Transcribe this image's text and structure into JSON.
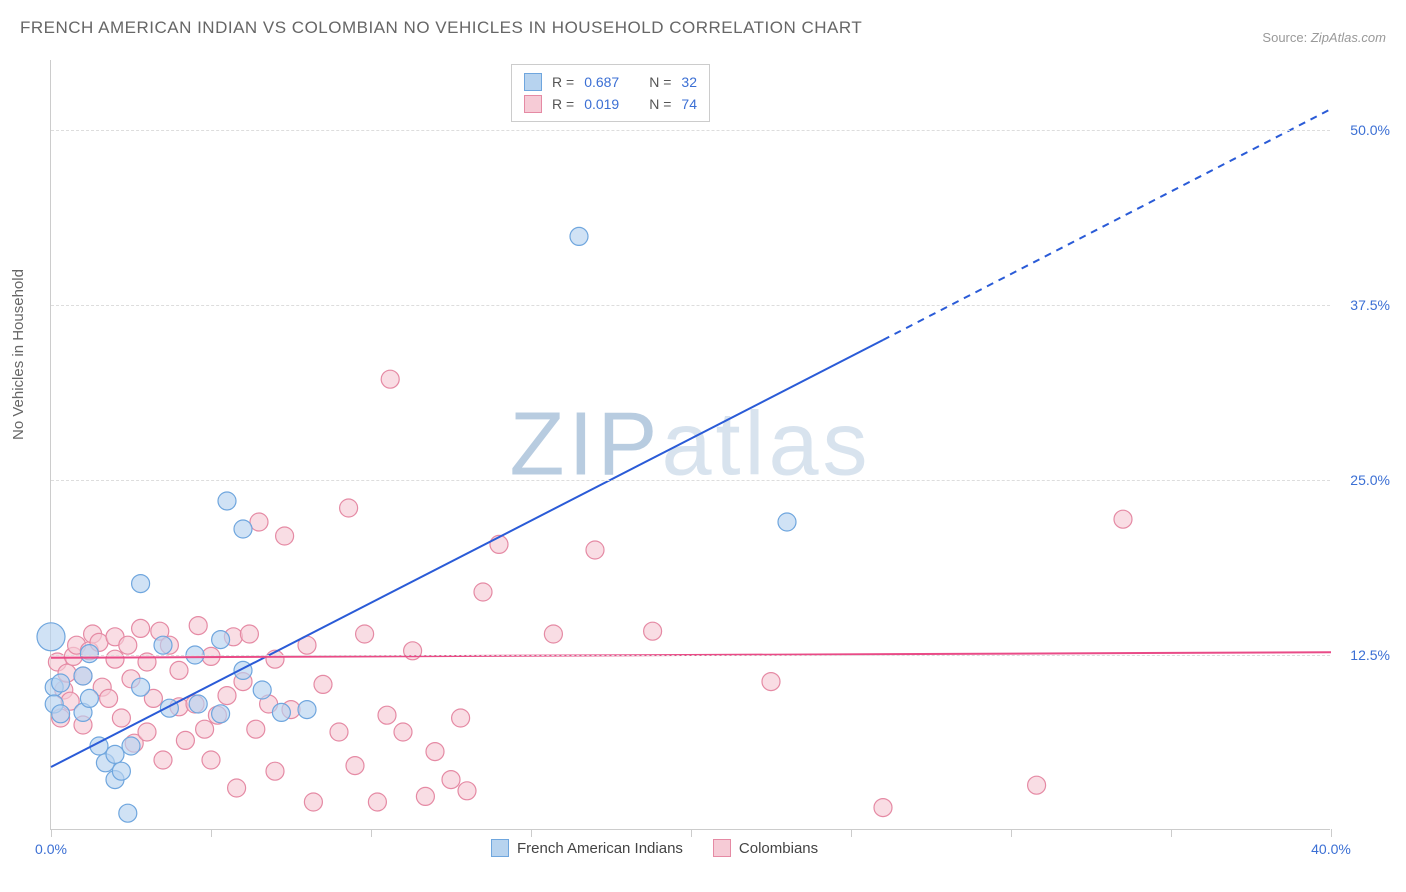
{
  "title": "FRENCH AMERICAN INDIAN VS COLOMBIAN NO VEHICLES IN HOUSEHOLD CORRELATION CHART",
  "source_label": "Source:",
  "source_value": "ZipAtlas.com",
  "ylabel": "No Vehicles in Household",
  "watermark": {
    "bold": "ZIP",
    "light": "atlas",
    "color_bold": "#b8cce0",
    "color_light": "#d8e3ee"
  },
  "chart": {
    "type": "scatter",
    "xlim": [
      0,
      40
    ],
    "ylim": [
      0,
      55
    ],
    "xtick_positions": [
      0,
      5,
      10,
      15,
      20,
      25,
      30,
      35,
      40
    ],
    "xtick_labels": {
      "0": "0.0%",
      "40": "40.0%"
    },
    "xtick_label_color": "#3b6fd4",
    "ytick_positions": [
      12.5,
      25.0,
      37.5,
      50.0
    ],
    "ytick_labels": [
      "12.5%",
      "25.0%",
      "37.5%",
      "50.0%"
    ],
    "ytick_label_color": "#3b6fd4",
    "grid_color": "#dddddd",
    "background_color": "#ffffff",
    "marker_radius": 9,
    "marker_stroke_width": 1.2,
    "series": [
      {
        "name": "French American Indians",
        "fill": "#b7d3ef",
        "stroke": "#6fa6de",
        "R": "0.687",
        "N": "32",
        "trend": {
          "x1": 0,
          "y1": 4.5,
          "x2_solid": 26,
          "y2_solid": 35,
          "x2_dash": 40,
          "y2_dash": 51.5,
          "color": "#2a5bd7",
          "width": 2
        },
        "points": [
          [
            0.0,
            13.8,
            14
          ],
          [
            0.1,
            10.2
          ],
          [
            0.1,
            9.0
          ],
          [
            0.3,
            10.5
          ],
          [
            0.3,
            8.3
          ],
          [
            1.0,
            11.0
          ],
          [
            1.0,
            8.4
          ],
          [
            1.2,
            12.6
          ],
          [
            1.2,
            9.4
          ],
          [
            1.5,
            6.0
          ],
          [
            1.7,
            4.8
          ],
          [
            2.0,
            3.6
          ],
          [
            2.0,
            5.4
          ],
          [
            2.2,
            4.2
          ],
          [
            2.4,
            1.2
          ],
          [
            2.5,
            6.0
          ],
          [
            2.8,
            17.6
          ],
          [
            2.8,
            10.2
          ],
          [
            3.5,
            13.2
          ],
          [
            3.7,
            8.7
          ],
          [
            4.5,
            12.5
          ],
          [
            4.6,
            9.0
          ],
          [
            5.3,
            13.6
          ],
          [
            5.3,
            8.3
          ],
          [
            5.5,
            23.5
          ],
          [
            6.0,
            21.5
          ],
          [
            6.0,
            11.4
          ],
          [
            6.6,
            10.0
          ],
          [
            7.2,
            8.4
          ],
          [
            8.0,
            8.6
          ],
          [
            16.5,
            42.4
          ],
          [
            23.0,
            22.0
          ]
        ]
      },
      {
        "name": "Colombians",
        "fill": "#f6cbd6",
        "stroke": "#e58aa4",
        "R": "0.019",
        "N": "74",
        "trend": {
          "x1": 0,
          "y1": 12.3,
          "x2_solid": 40,
          "y2_solid": 12.7,
          "color": "#e94b87",
          "width": 2
        },
        "points": [
          [
            0.2,
            12.0
          ],
          [
            0.3,
            8.0
          ],
          [
            0.4,
            10.0
          ],
          [
            0.5,
            11.2
          ],
          [
            0.6,
            9.2
          ],
          [
            0.7,
            12.4
          ],
          [
            0.8,
            13.2
          ],
          [
            1.0,
            11.0
          ],
          [
            1.0,
            7.5
          ],
          [
            1.2,
            12.8
          ],
          [
            1.3,
            14.0
          ],
          [
            1.5,
            13.4
          ],
          [
            1.6,
            10.2
          ],
          [
            1.8,
            9.4
          ],
          [
            2.0,
            13.8
          ],
          [
            2.0,
            12.2
          ],
          [
            2.2,
            8.0
          ],
          [
            2.4,
            13.2
          ],
          [
            2.5,
            10.8
          ],
          [
            2.6,
            6.2
          ],
          [
            2.8,
            14.4
          ],
          [
            3.0,
            12.0
          ],
          [
            3.0,
            7.0
          ],
          [
            3.2,
            9.4
          ],
          [
            3.4,
            14.2
          ],
          [
            3.5,
            5.0
          ],
          [
            3.7,
            13.2
          ],
          [
            4.0,
            8.8
          ],
          [
            4.0,
            11.4
          ],
          [
            4.2,
            6.4
          ],
          [
            4.5,
            9.0
          ],
          [
            4.6,
            14.6
          ],
          [
            4.8,
            7.2
          ],
          [
            5.0,
            12.4
          ],
          [
            5.0,
            5.0
          ],
          [
            5.2,
            8.2
          ],
          [
            5.5,
            9.6
          ],
          [
            5.7,
            13.8
          ],
          [
            5.8,
            3.0
          ],
          [
            6.0,
            10.6
          ],
          [
            6.2,
            14.0
          ],
          [
            6.4,
            7.2
          ],
          [
            6.5,
            22.0
          ],
          [
            6.8,
            9.0
          ],
          [
            7.0,
            12.2
          ],
          [
            7.0,
            4.2
          ],
          [
            7.3,
            21.0
          ],
          [
            7.5,
            8.6
          ],
          [
            8.0,
            13.2
          ],
          [
            8.2,
            2.0
          ],
          [
            8.5,
            10.4
          ],
          [
            9.0,
            7.0
          ],
          [
            9.3,
            23.0
          ],
          [
            9.5,
            4.6
          ],
          [
            9.8,
            14.0
          ],
          [
            10.2,
            2.0
          ],
          [
            10.5,
            8.2
          ],
          [
            10.6,
            32.2
          ],
          [
            11.0,
            7.0
          ],
          [
            11.3,
            12.8
          ],
          [
            11.7,
            2.4
          ],
          [
            12.0,
            5.6
          ],
          [
            12.5,
            3.6
          ],
          [
            12.8,
            8.0
          ],
          [
            13.0,
            2.8
          ],
          [
            13.5,
            17.0
          ],
          [
            14.0,
            20.4
          ],
          [
            15.7,
            14.0
          ],
          [
            17.0,
            20.0
          ],
          [
            18.8,
            14.2
          ],
          [
            22.5,
            10.6
          ],
          [
            26.0,
            1.6
          ],
          [
            30.8,
            3.2
          ],
          [
            33.5,
            22.2
          ]
        ]
      }
    ]
  },
  "legend_top": {
    "r_label": "R =",
    "n_label": "N =",
    "value_color": "#3b6fd4",
    "text_color": "#555555"
  },
  "legend_bottom_text_color": "#444444"
}
